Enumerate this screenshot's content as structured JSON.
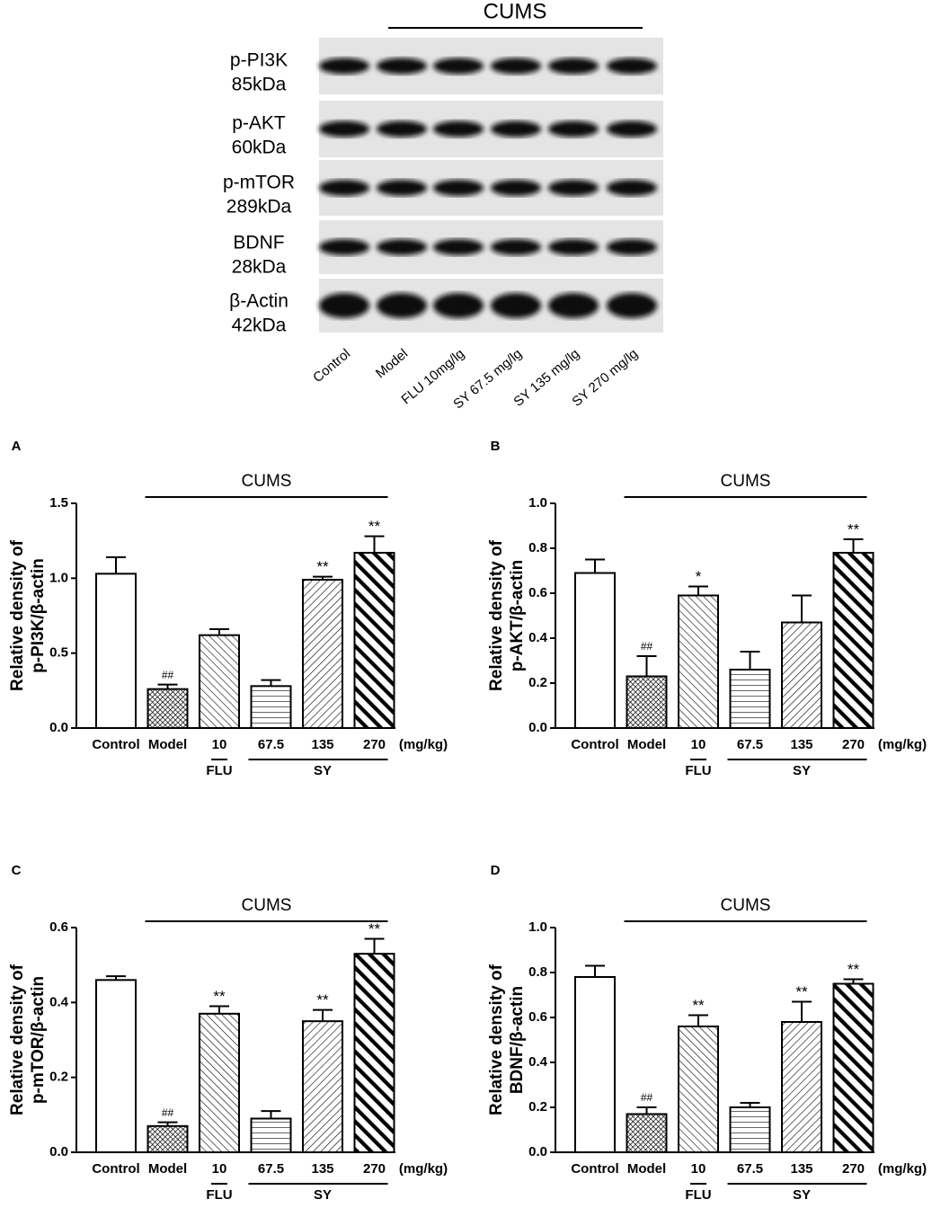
{
  "blot": {
    "title": "CUMS",
    "rows": [
      {
        "name": "p-PI3K",
        "size": "85kDa"
      },
      {
        "name": "p-AKT",
        "size": "60kDa"
      },
      {
        "name": "p-mTOR",
        "size": "289kDa"
      },
      {
        "name": "BDNF",
        "size": "28kDa"
      },
      {
        "name": "β-Actin",
        "size": "42kDa"
      }
    ],
    "lanes": [
      "Control",
      "Model",
      "FLU 10mg/lg",
      "SY 67.5 mg/lg",
      "SY 135 mg/lg",
      "SY 270 mg/lg"
    ]
  },
  "chart_data": [
    {
      "type": "bar",
      "panel": "A",
      "ylabel": [
        "Relative density of",
        "p-PI3K/β-actin"
      ],
      "categories": [
        "Control",
        "Model",
        "10",
        "67.5",
        "135",
        "270"
      ],
      "unit_label": "(mg/kg)",
      "values": [
        1.03,
        0.26,
        0.62,
        0.28,
        0.99,
        1.17
      ],
      "errors": [
        0.11,
        0.03,
        0.04,
        0.04,
        0.02,
        0.11
      ],
      "value_labels": [
        null,
        "##",
        null,
        null,
        "**",
        "**"
      ],
      "patterns": [
        "none",
        "crosshatch",
        "back-diagonal",
        "horizontal",
        "diagonal",
        "back-diagonal-thick"
      ],
      "annotation": {
        "label": "CUMS",
        "categories": [
          "Model",
          "10",
          "67.5",
          "135",
          "270"
        ]
      },
      "groups": [
        {
          "label": "FLU",
          "categories": [
            "10"
          ]
        },
        {
          "label": "SY",
          "categories": [
            "67.5",
            "135",
            "270"
          ]
        }
      ],
      "ylim": [
        0,
        1.5
      ],
      "yticks": [
        {
          "value": 0,
          "label": "0.0"
        },
        0.5,
        {
          "value": 1,
          "label": "1.0"
        },
        1.5
      ]
    },
    {
      "type": "bar",
      "panel": "B",
      "ylabel": [
        "Relative density of",
        "p-AKT/β-actin"
      ],
      "categories": [
        "Control",
        "Model",
        "10",
        "67.5",
        "135",
        "270"
      ],
      "unit_label": "(mg/kg)",
      "values": [
        0.69,
        0.23,
        0.59,
        0.26,
        0.47,
        0.78
      ],
      "errors": [
        0.06,
        0.09,
        0.04,
        0.08,
        0.12,
        0.06
      ],
      "value_labels": [
        null,
        "##",
        "*",
        null,
        null,
        "**"
      ],
      "patterns": [
        "none",
        "crosshatch",
        "back-diagonal",
        "horizontal",
        "diagonal",
        "back-diagonal-thick"
      ],
      "annotation": {
        "label": "CUMS",
        "categories": [
          "Model",
          "10",
          "67.5",
          "135",
          "270"
        ]
      },
      "groups": [
        {
          "label": "FLU",
          "categories": [
            "10"
          ]
        },
        {
          "label": "SY",
          "categories": [
            "67.5",
            "135",
            "270"
          ]
        }
      ],
      "ylim": [
        0,
        1
      ],
      "yticks": [
        {
          "value": 0,
          "label": "0.0"
        },
        0.2,
        0.4,
        0.6,
        0.8,
        {
          "value": 1,
          "label": "1.0"
        }
      ]
    },
    {
      "type": "bar",
      "panel": "C",
      "ylabel": [
        "Relative density of",
        "p-mTOR/β-actin"
      ],
      "categories": [
        "Control",
        "Model",
        "10",
        "67.5",
        "135",
        "270"
      ],
      "unit_label": "(mg/kg)",
      "values": [
        0.46,
        0.07,
        0.37,
        0.09,
        0.35,
        0.53
      ],
      "errors": [
        0.01,
        0.01,
        0.02,
        0.02,
        0.03,
        0.04
      ],
      "value_labels": [
        null,
        "##",
        "**",
        null,
        "**",
        "**"
      ],
      "patterns": [
        "none",
        "crosshatch",
        "back-diagonal",
        "horizontal",
        "diagonal",
        "back-diagonal-thick"
      ],
      "annotation": {
        "label": "CUMS",
        "categories": [
          "Model",
          "10",
          "67.5",
          "135",
          "270"
        ]
      },
      "groups": [
        {
          "label": "FLU",
          "categories": [
            "10"
          ]
        },
        {
          "label": "SY",
          "categories": [
            "67.5",
            "135",
            "270"
          ]
        }
      ],
      "ylim": [
        0,
        0.6
      ],
      "yticks": [
        {
          "value": 0,
          "label": "0.0"
        },
        0.2,
        0.4,
        0.6
      ]
    },
    {
      "type": "bar",
      "panel": "D",
      "ylabel": [
        "Relative density of",
        "BDNF/β-actin"
      ],
      "categories": [
        "Control",
        "Model",
        "10",
        "67.5",
        "135",
        "270"
      ],
      "unit_label": "(mg/kg)",
      "values": [
        0.78,
        0.17,
        0.56,
        0.2,
        0.58,
        0.75
      ],
      "errors": [
        0.05,
        0.03,
        0.05,
        0.02,
        0.09,
        0.02
      ],
      "value_labels": [
        null,
        "##",
        "**",
        null,
        "**",
        "**"
      ],
      "patterns": [
        "none",
        "crosshatch",
        "back-diagonal",
        "horizontal",
        "diagonal",
        "back-diagonal-thick"
      ],
      "annotation": {
        "label": "CUMS",
        "categories": [
          "Model",
          "10",
          "67.5",
          "135",
          "270"
        ]
      },
      "groups": [
        {
          "label": "FLU",
          "categories": [
            "10"
          ]
        },
        {
          "label": "SY",
          "categories": [
            "67.5",
            "135",
            "270"
          ]
        }
      ],
      "ylim": [
        0,
        1
      ],
      "yticks": [
        {
          "value": 0,
          "label": "0.0"
        },
        0.2,
        0.4,
        0.6,
        0.8,
        {
          "value": 1,
          "label": "1.0"
        }
      ]
    }
  ]
}
